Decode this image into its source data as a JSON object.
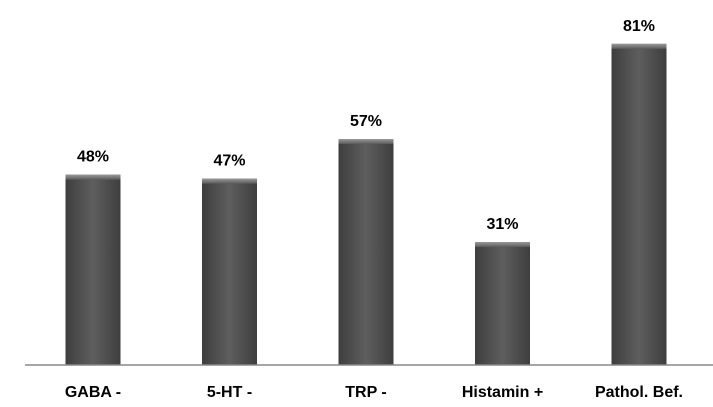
{
  "chart_data": {
    "type": "bar",
    "categories": [
      "GABA -",
      "5-HT -",
      "TRP -",
      "Histamin +",
      "Pathol. Bef."
    ],
    "values": [
      48,
      47,
      57,
      31,
      81
    ],
    "value_labels": [
      "48%",
      "47%",
      "57%",
      "31%",
      "81%"
    ],
    "title": "",
    "xlabel": "",
    "ylabel": "",
    "ylim": [
      0,
      85
    ],
    "grid": false,
    "legend": "none",
    "bar_color": "#5a5a5a",
    "bar_color_dark": "#3a3a3a",
    "bar_color_light": "#7a7a7a",
    "axis_color": "#888888"
  }
}
